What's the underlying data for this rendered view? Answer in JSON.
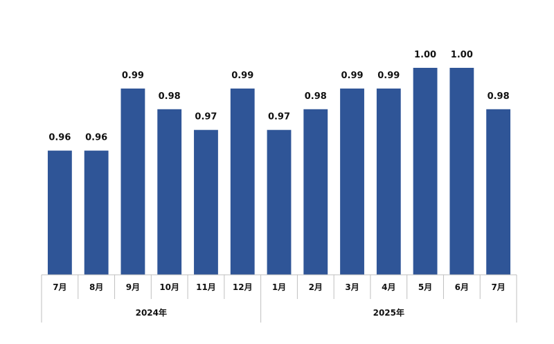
{
  "chart_data": {
    "type": "bar",
    "categories": [
      "7月",
      "8月",
      "9月",
      "10月",
      "11月",
      "12月",
      "1月",
      "2月",
      "3月",
      "4月",
      "5月",
      "6月",
      "7月"
    ],
    "values": [
      0.96,
      0.96,
      0.99,
      0.98,
      0.97,
      0.99,
      0.97,
      0.98,
      0.99,
      0.99,
      1.0,
      1.0,
      0.98
    ],
    "value_labels": [
      "0.96",
      "0.96",
      "0.99",
      "0.98",
      "0.97",
      "0.99",
      "0.97",
      "0.98",
      "0.99",
      "0.99",
      "1.00",
      "1.00",
      "0.98"
    ],
    "groups": [
      {
        "label": "2024年",
        "count": 6
      },
      {
        "label": "2025年",
        "count": 7
      }
    ],
    "ylim": [
      0.9,
      1.0
    ],
    "grid": false,
    "bar_color": "#2f5597",
    "axis_color": "#bfbfbf"
  }
}
